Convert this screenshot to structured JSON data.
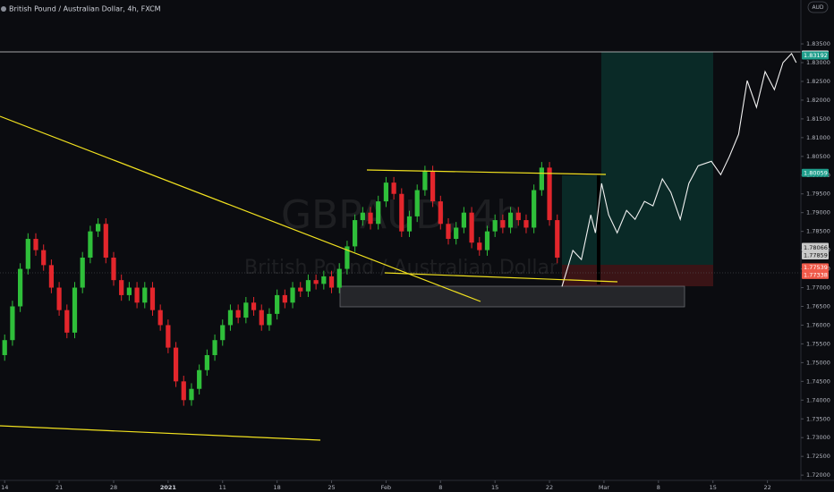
{
  "chart_data": {
    "type": "candlestick",
    "title": "British Pound / Australian Dollar, 4h, FXCM",
    "watermark": {
      "symbol": "GBPAUD, 4h",
      "description": "British Pound / Australian Dollar"
    },
    "currency": "AUD",
    "up_color": "#2fbf3a",
    "down_color": "#e3262c",
    "x": [
      0,
      1,
      2,
      3,
      4,
      5,
      6,
      7,
      8,
      9,
      10,
      11,
      12,
      13,
      14,
      15,
      16,
      17,
      18,
      19,
      20,
      21,
      22,
      23,
      24,
      25,
      26,
      27,
      28,
      29,
      30,
      31,
      32,
      33,
      34,
      35,
      36,
      37,
      38,
      39,
      40,
      41,
      42,
      43,
      44,
      45,
      46,
      47,
      48,
      49,
      50,
      51,
      52,
      53,
      54,
      55,
      56,
      57,
      58,
      59,
      60,
      61,
      62,
      63,
      64,
      65,
      66,
      67,
      68,
      69,
      70,
      71
    ],
    "open": [
      1.752,
      1.756,
      1.765,
      1.775,
      1.783,
      1.78,
      1.776,
      1.77,
      1.764,
      1.758,
      1.77,
      1.778,
      1.785,
      1.787,
      1.778,
      1.772,
      1.768,
      1.77,
      1.766,
      1.77,
      1.764,
      1.76,
      1.754,
      1.745,
      1.74,
      1.743,
      1.748,
      1.752,
      1.756,
      1.76,
      1.764,
      1.762,
      1.766,
      1.764,
      1.76,
      1.763,
      1.768,
      1.766,
      1.77,
      1.769,
      1.772,
      1.771,
      1.773,
      1.77,
      1.775,
      1.781,
      1.788,
      1.79,
      1.787,
      1.793,
      1.798,
      1.795,
      1.785,
      1.789,
      1.796,
      1.801,
      1.793,
      1.787,
      1.783,
      1.786,
      1.79,
      1.782,
      1.78,
      1.785,
      1.788,
      1.786,
      1.79,
      1.788,
      1.786,
      1.796,
      1.802,
      1.788
    ],
    "high": [
      1.7575,
      1.7665,
      1.7765,
      1.7845,
      1.7845,
      1.7815,
      1.7775,
      1.7715,
      1.7655,
      1.7715,
      1.7795,
      1.7865,
      1.7885,
      1.7885,
      1.7795,
      1.7735,
      1.7715,
      1.7715,
      1.7715,
      1.7715,
      1.7655,
      1.7615,
      1.7555,
      1.7465,
      1.7445,
      1.7495,
      1.7535,
      1.7575,
      1.7615,
      1.7655,
      1.7655,
      1.7675,
      1.7675,
      1.7655,
      1.7645,
      1.7695,
      1.7695,
      1.7715,
      1.7715,
      1.7735,
      1.7735,
      1.7745,
      1.7745,
      1.7765,
      1.7825,
      1.7895,
      1.7915,
      1.7915,
      1.7945,
      1.7995,
      1.7995,
      1.7965,
      1.7905,
      1.7975,
      1.8025,
      1.8025,
      1.7945,
      1.7885,
      1.7875,
      1.7915,
      1.7915,
      1.7835,
      1.7865,
      1.7895,
      1.7895,
      1.7915,
      1.7915,
      1.7895,
      1.7975,
      1.8035,
      1.8035,
      1.7895
    ],
    "low": [
      1.7505,
      1.7545,
      1.7635,
      1.7735,
      1.7785,
      1.7745,
      1.7685,
      1.7625,
      1.7565,
      1.7565,
      1.7685,
      1.7765,
      1.7835,
      1.7765,
      1.7705,
      1.7665,
      1.7665,
      1.7645,
      1.7645,
      1.7625,
      1.7585,
      1.7525,
      1.7435,
      1.7385,
      1.7385,
      1.7415,
      1.7465,
      1.7505,
      1.7545,
      1.7585,
      1.7605,
      1.7605,
      1.7625,
      1.7585,
      1.7585,
      1.7615,
      1.7645,
      1.7645,
      1.7675,
      1.7675,
      1.7695,
      1.7695,
      1.7685,
      1.7685,
      1.7735,
      1.7795,
      1.7865,
      1.7855,
      1.7855,
      1.7915,
      1.7935,
      1.7835,
      1.7835,
      1.7875,
      1.7945,
      1.7915,
      1.7855,
      1.7815,
      1.7815,
      1.7845,
      1.7805,
      1.7785,
      1.7785,
      1.7835,
      1.7845,
      1.7845,
      1.7865,
      1.7845,
      1.7845,
      1.7945,
      1.7865,
      1.7765
    ],
    "close": [
      1.756,
      1.765,
      1.775,
      1.783,
      1.78,
      1.776,
      1.77,
      1.764,
      1.758,
      1.77,
      1.778,
      1.785,
      1.787,
      1.778,
      1.772,
      1.768,
      1.77,
      1.766,
      1.77,
      1.764,
      1.76,
      1.754,
      1.745,
      1.74,
      1.743,
      1.748,
      1.752,
      1.756,
      1.76,
      1.764,
      1.762,
      1.766,
      1.764,
      1.76,
      1.763,
      1.768,
      1.766,
      1.77,
      1.769,
      1.772,
      1.771,
      1.773,
      1.77,
      1.775,
      1.781,
      1.788,
      1.79,
      1.787,
      1.793,
      1.798,
      1.795,
      1.785,
      1.789,
      1.796,
      1.801,
      1.793,
      1.787,
      1.783,
      1.786,
      1.79,
      1.782,
      1.78,
      1.785,
      1.788,
      1.786,
      1.79,
      1.788,
      1.786,
      1.796,
      1.802,
      1.788,
      1.778
    ],
    "projection": {
      "color": "#f2f2f2",
      "x": [
        71.6,
        73.0,
        74.1,
        75.3,
        75.9,
        76.7,
        77.6,
        78.7,
        79.9,
        81.0,
        82.2,
        83.3,
        84.5,
        85.6,
        86.8,
        87.9,
        89.1,
        90.8,
        92.0,
        93.1,
        94.3,
        95.4,
        96.6,
        97.7,
        98.9,
        100.0,
        101.1,
        101.7
      ],
      "values": [
        1.7703,
        1.7799,
        1.7775,
        1.7894,
        1.7846,
        1.7978,
        1.7894,
        1.7846,
        1.7906,
        1.7882,
        1.793,
        1.7918,
        1.799,
        1.7954,
        1.7882,
        1.7978,
        1.8025,
        1.8037,
        1.8001,
        1.8049,
        1.8109,
        1.8252,
        1.8181,
        1.8276,
        1.8228,
        1.83,
        1.8324,
        1.83
      ]
    },
    "xlim": [
      -0.6,
      102.3
    ],
    "ylim": [
      1.7186,
      1.8467
    ],
    "xticks": [
      {
        "value": 0,
        "label": "14"
      },
      {
        "value": 7,
        "label": "21"
      },
      {
        "value": 14,
        "label": "28"
      },
      {
        "value": 21,
        "label": "2021"
      },
      {
        "value": 28,
        "label": "11"
      },
      {
        "value": 35,
        "label": "18"
      },
      {
        "value": 42,
        "label": "25"
      },
      {
        "value": 49,
        "label": "Feb"
      },
      {
        "value": 56,
        "label": "8"
      },
      {
        "value": 63,
        "label": "15"
      },
      {
        "value": 70,
        "label": "22"
      },
      {
        "value": 77,
        "label": "Mar"
      },
      {
        "value": 84,
        "label": "8"
      },
      {
        "value": 91,
        "label": "15"
      },
      {
        "value": 98,
        "label": "22"
      }
    ],
    "yticks": [
      {
        "value": 1.72,
        "label": "1.72000"
      },
      {
        "value": 1.725,
        "label": "1.72500"
      },
      {
        "value": 1.73,
        "label": "1.73000"
      },
      {
        "value": 1.735,
        "label": "1.73500"
      },
      {
        "value": 1.74,
        "label": "1.74000"
      },
      {
        "value": 1.745,
        "label": "1.74500"
      },
      {
        "value": 1.75,
        "label": "1.75000"
      },
      {
        "value": 1.755,
        "label": "1.75500"
      },
      {
        "value": 1.76,
        "label": "1.76000"
      },
      {
        "value": 1.765,
        "label": "1.76500"
      },
      {
        "value": 1.77,
        "label": "1.77000"
      },
      {
        "value": 1.775,
        "label": "1.77500"
      },
      {
        "value": 1.78,
        "label": "1.78000"
      },
      {
        "value": 1.785,
        "label": "1.78500"
      },
      {
        "value": 1.79,
        "label": "1.79000"
      },
      {
        "value": 1.795,
        "label": "1.79500"
      },
      {
        "value": 1.8,
        "label": "1.80000"
      },
      {
        "value": 1.805,
        "label": "1.80500"
      },
      {
        "value": 1.81,
        "label": "1.81000"
      },
      {
        "value": 1.815,
        "label": "1.81500"
      },
      {
        "value": 1.82,
        "label": "1.82000"
      },
      {
        "value": 1.825,
        "label": "1.82500"
      },
      {
        "value": 1.83,
        "label": "1.83000"
      },
      {
        "value": 1.835,
        "label": "1.83500"
      }
    ],
    "price_labels": [
      {
        "value": 1.83216,
        "label": "1.83216",
        "color": "#e8e8e8"
      },
      {
        "value": 1.83192,
        "label": "1.83192",
        "color": "#1f9e8c"
      },
      {
        "value": 1.80059,
        "label": "1.80059",
        "color": "#1f9e8c"
      },
      {
        "value": 1.78086,
        "label": "1.78086",
        "color": "#c9c9c9"
      },
      {
        "value": 1.78066,
        "label": "1.78066",
        "color": "#c9c9c9"
      },
      {
        "value": 1.77859,
        "label": "1.77859",
        "color": "#c9c9c9"
      },
      {
        "value": 1.77539,
        "label": "1.77539",
        "color": "#f05a4a"
      },
      {
        "value": 1.77338,
        "label": "1.77338",
        "color": "#f05a4a"
      }
    ]
  }
}
